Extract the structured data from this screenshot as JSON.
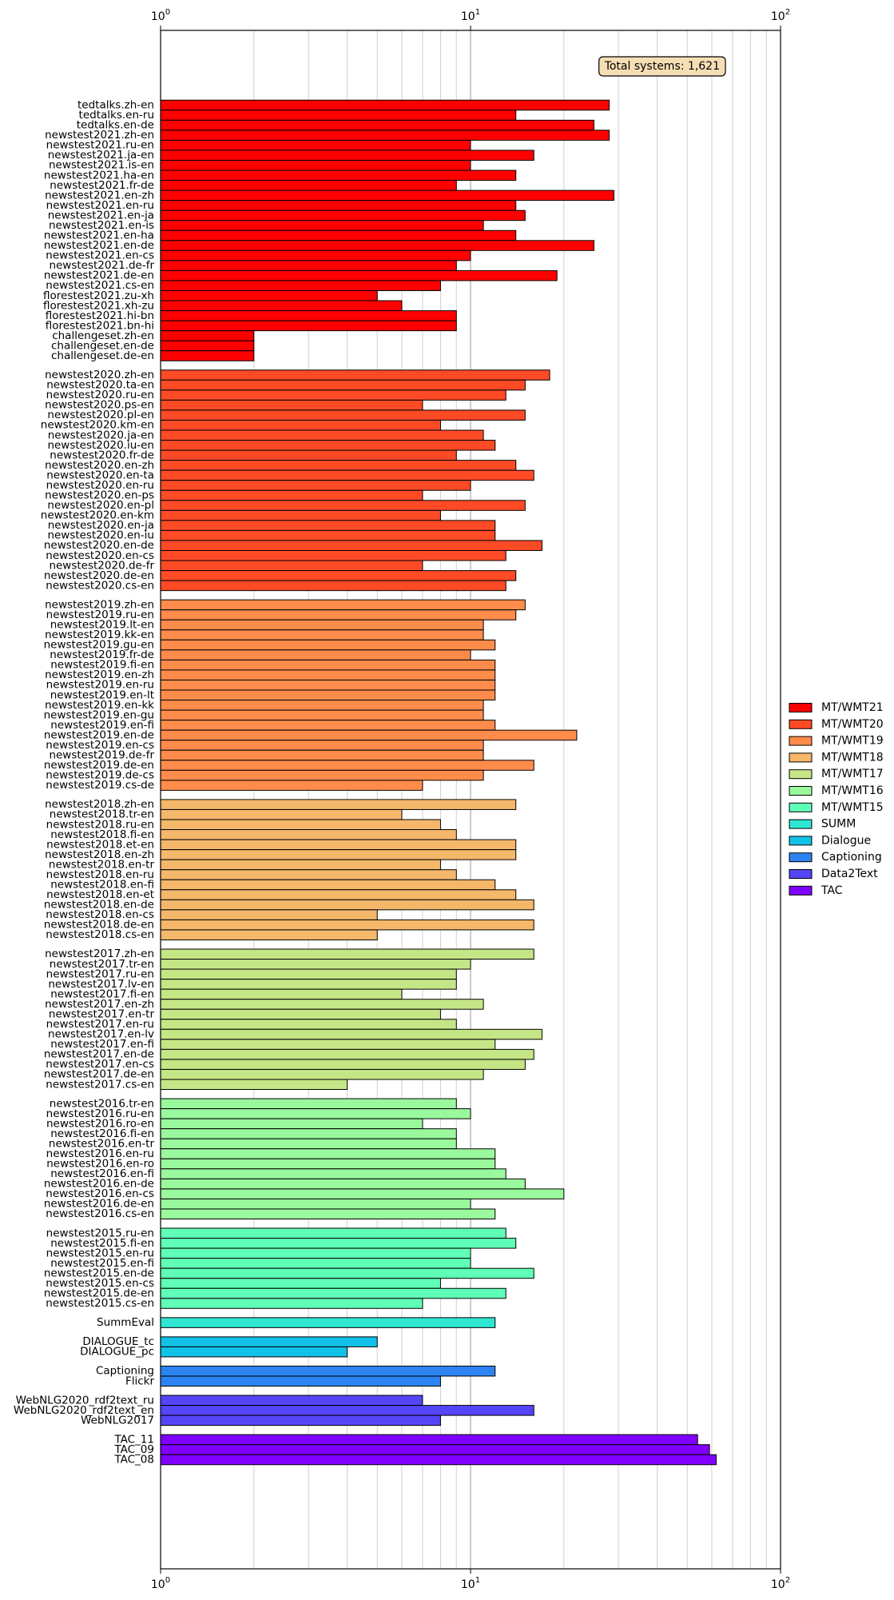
{
  "chart_data": {
    "type": "bar",
    "orientation": "horizontal",
    "x_scale": "log",
    "xlim": [
      1,
      100
    ],
    "grid": true,
    "legend_position": "right",
    "x_ticks": [
      {
        "value": 1,
        "base": "10",
        "exp": "0"
      },
      {
        "value": 10,
        "base": "10",
        "exp": "1"
      },
      {
        "value": 100,
        "base": "10",
        "exp": "2"
      }
    ],
    "annotation": "Total systems: 1,621",
    "groups": [
      {
        "name": "MT/WMT21",
        "color": "#ff0000",
        "bars": [
          {
            "label": "tedtalks.zh-en",
            "value": 28
          },
          {
            "label": "tedtalks.en-ru",
            "value": 14
          },
          {
            "label": "tedtalks.en-de",
            "value": 25
          },
          {
            "label": "newstest2021.zh-en",
            "value": 28
          },
          {
            "label": "newstest2021.ru-en",
            "value": 10
          },
          {
            "label": "newstest2021.ja-en",
            "value": 16
          },
          {
            "label": "newstest2021.is-en",
            "value": 10
          },
          {
            "label": "newstest2021.ha-en",
            "value": 14
          },
          {
            "label": "newstest2021.fr-de",
            "value": 9
          },
          {
            "label": "newstest2021.en-zh",
            "value": 29
          },
          {
            "label": "newstest2021.en-ru",
            "value": 14
          },
          {
            "label": "newstest2021.en-ja",
            "value": 15
          },
          {
            "label": "newstest2021.en-is",
            "value": 11
          },
          {
            "label": "newstest2021.en-ha",
            "value": 14
          },
          {
            "label": "newstest2021.en-de",
            "value": 25
          },
          {
            "label": "newstest2021.en-cs",
            "value": 10
          },
          {
            "label": "newstest2021.de-fr",
            "value": 9
          },
          {
            "label": "newstest2021.de-en",
            "value": 19
          },
          {
            "label": "newstest2021.cs-en",
            "value": 8
          },
          {
            "label": "florestest2021.zu-xh",
            "value": 5
          },
          {
            "label": "florestest2021.xh-zu",
            "value": 6
          },
          {
            "label": "florestest2021.hi-bn",
            "value": 9
          },
          {
            "label": "florestest2021.bn-hi",
            "value": 9
          },
          {
            "label": "challengeset.zh-en",
            "value": 2
          },
          {
            "label": "challengeset.en-de",
            "value": 2
          },
          {
            "label": "challengeset.de-en",
            "value": 2
          }
        ]
      },
      {
        "name": "MT/WMT20",
        "color": "#ff4a26",
        "bars": [
          {
            "label": "newstest2020.zh-en",
            "value": 18
          },
          {
            "label": "newstest2020.ta-en",
            "value": 15
          },
          {
            "label": "newstest2020.ru-en",
            "value": 13
          },
          {
            "label": "newstest2020.ps-en",
            "value": 7
          },
          {
            "label": "newstest2020.pl-en",
            "value": 15
          },
          {
            "label": "newstest2020.km-en",
            "value": 8
          },
          {
            "label": "newstest2020.ja-en",
            "value": 11
          },
          {
            "label": "newstest2020.iu-en",
            "value": 12
          },
          {
            "label": "newstest2020.fr-de",
            "value": 9
          },
          {
            "label": "newstest2020.en-zh",
            "value": 14
          },
          {
            "label": "newstest2020.en-ta",
            "value": 16
          },
          {
            "label": "newstest2020.en-ru",
            "value": 10
          },
          {
            "label": "newstest2020.en-ps",
            "value": 7
          },
          {
            "label": "newstest2020.en-pl",
            "value": 15
          },
          {
            "label": "newstest2020.en-km",
            "value": 8
          },
          {
            "label": "newstest2020.en-ja",
            "value": 12
          },
          {
            "label": "newstest2020.en-iu",
            "value": 12
          },
          {
            "label": "newstest2020.en-de",
            "value": 17
          },
          {
            "label": "newstest2020.en-cs",
            "value": 13
          },
          {
            "label": "newstest2020.de-fr",
            "value": 7
          },
          {
            "label": "newstest2020.de-en",
            "value": 14
          },
          {
            "label": "newstest2020.cs-en",
            "value": 13
          }
        ]
      },
      {
        "name": "MT/WMT19",
        "color": "#ff8c4b",
        "bars": [
          {
            "label": "newstest2019.zh-en",
            "value": 15
          },
          {
            "label": "newstest2019.ru-en",
            "value": 14
          },
          {
            "label": "newstest2019.lt-en",
            "value": 11
          },
          {
            "label": "newstest2019.kk-en",
            "value": 11
          },
          {
            "label": "newstest2019.gu-en",
            "value": 12
          },
          {
            "label": "newstest2019.fr-de",
            "value": 10
          },
          {
            "label": "newstest2019.fi-en",
            "value": 12
          },
          {
            "label": "newstest2019.en-zh",
            "value": 12
          },
          {
            "label": "newstest2019.en-ru",
            "value": 12
          },
          {
            "label": "newstest2019.en-lt",
            "value": 12
          },
          {
            "label": "newstest2019.en-kk",
            "value": 11
          },
          {
            "label": "newstest2019.en-gu",
            "value": 11
          },
          {
            "label": "newstest2019.en-fi",
            "value": 12
          },
          {
            "label": "newstest2019.en-de",
            "value": 22
          },
          {
            "label": "newstest2019.en-cs",
            "value": 11
          },
          {
            "label": "newstest2019.de-fr",
            "value": 11
          },
          {
            "label": "newstest2019.de-en",
            "value": 16
          },
          {
            "label": "newstest2019.de-cs",
            "value": 11
          },
          {
            "label": "newstest2019.cs-de",
            "value": 7
          }
        ]
      },
      {
        "name": "MT/WMT18",
        "color": "#f5b86b",
        "bars": [
          {
            "label": "newstest2018.zh-en",
            "value": 14
          },
          {
            "label": "newstest2018.tr-en",
            "value": 6
          },
          {
            "label": "newstest2018.ru-en",
            "value": 8
          },
          {
            "label": "newstest2018.fi-en",
            "value": 9
          },
          {
            "label": "newstest2018.et-en",
            "value": 14
          },
          {
            "label": "newstest2018.en-zh",
            "value": 14
          },
          {
            "label": "newstest2018.en-tr",
            "value": 8
          },
          {
            "label": "newstest2018.en-ru",
            "value": 9
          },
          {
            "label": "newstest2018.en-fi",
            "value": 12
          },
          {
            "label": "newstest2018.en-et",
            "value": 14
          },
          {
            "label": "newstest2018.en-de",
            "value": 16
          },
          {
            "label": "newstest2018.en-cs",
            "value": 5
          },
          {
            "label": "newstest2018.de-en",
            "value": 16
          },
          {
            "label": "newstest2018.cs-en",
            "value": 5
          }
        ]
      },
      {
        "name": "MT/WMT17",
        "color": "#c5e686",
        "bars": [
          {
            "label": "newstest2017.zh-en",
            "value": 16
          },
          {
            "label": "newstest2017.tr-en",
            "value": 10
          },
          {
            "label": "newstest2017.ru-en",
            "value": 9
          },
          {
            "label": "newstest2017.lv-en",
            "value": 9
          },
          {
            "label": "newstest2017.fi-en",
            "value": 6
          },
          {
            "label": "newstest2017.en-zh",
            "value": 11
          },
          {
            "label": "newstest2017.en-tr",
            "value": 8
          },
          {
            "label": "newstest2017.en-ru",
            "value": 9
          },
          {
            "label": "newstest2017.en-lv",
            "value": 17
          },
          {
            "label": "newstest2017.en-fi",
            "value": 12
          },
          {
            "label": "newstest2017.en-de",
            "value": 16
          },
          {
            "label": "newstest2017.en-cs",
            "value": 15
          },
          {
            "label": "newstest2017.de-en",
            "value": 11
          },
          {
            "label": "newstest2017.cs-en",
            "value": 4
          }
        ]
      },
      {
        "name": "MT/WMT16",
        "color": "#9af99d",
        "bars": [
          {
            "label": "newstest2016.tr-en",
            "value": 9
          },
          {
            "label": "newstest2016.ru-en",
            "value": 10
          },
          {
            "label": "newstest2016.ro-en",
            "value": 7
          },
          {
            "label": "newstest2016.fi-en",
            "value": 9
          },
          {
            "label": "newstest2016.en-tr",
            "value": 9
          },
          {
            "label": "newstest2016.en-ru",
            "value": 12
          },
          {
            "label": "newstest2016.en-ro",
            "value": 12
          },
          {
            "label": "newstest2016.en-fi",
            "value": 13
          },
          {
            "label": "newstest2016.en-de",
            "value": 15
          },
          {
            "label": "newstest2016.en-cs",
            "value": 20
          },
          {
            "label": "newstest2016.de-en",
            "value": 10
          },
          {
            "label": "newstest2016.cs-en",
            "value": 12
          }
        ]
      },
      {
        "name": "MT/WMT15",
        "color": "#60ffb7",
        "bars": [
          {
            "label": "newstest2015.ru-en",
            "value": 13
          },
          {
            "label": "newstest2015.fi-en",
            "value": 14
          },
          {
            "label": "newstest2015.en-ru",
            "value": 10
          },
          {
            "label": "newstest2015.en-fi",
            "value": 10
          },
          {
            "label": "newstest2015.en-de",
            "value": 16
          },
          {
            "label": "newstest2015.en-cs",
            "value": 8
          },
          {
            "label": "newstest2015.de-en",
            "value": 13
          },
          {
            "label": "newstest2015.cs-en",
            "value": 7
          }
        ]
      },
      {
        "name": "SUMM",
        "color": "#2ee6d2",
        "bars": [
          {
            "label": "SummEval",
            "value": 12
          }
        ]
      },
      {
        "name": "Dialogue",
        "color": "#12c1e8",
        "bars": [
          {
            "label": "DIALOGUE_tc",
            "value": 5
          },
          {
            "label": "DIALOGUE_pc",
            "value": 4
          }
        ]
      },
      {
        "name": "Captioning",
        "color": "#2c84f2",
        "bars": [
          {
            "label": "Captioning",
            "value": 12
          },
          {
            "label": "Flickr",
            "value": 8
          }
        ]
      },
      {
        "name": "Data2Text",
        "color": "#5445f6",
        "bars": [
          {
            "label": "WebNLG2020_rdf2text_ru",
            "value": 7
          },
          {
            "label": "WebNLG2020_rdf2text_en",
            "value": 16
          },
          {
            "label": "WebNLG2017",
            "value": 8
          }
        ]
      },
      {
        "name": "TAC",
        "color": "#8000ff",
        "bars": [
          {
            "label": "TAC_11",
            "value": 54
          },
          {
            "label": "TAC_09",
            "value": 59
          },
          {
            "label": "TAC_08",
            "value": 62
          }
        ]
      }
    ]
  }
}
